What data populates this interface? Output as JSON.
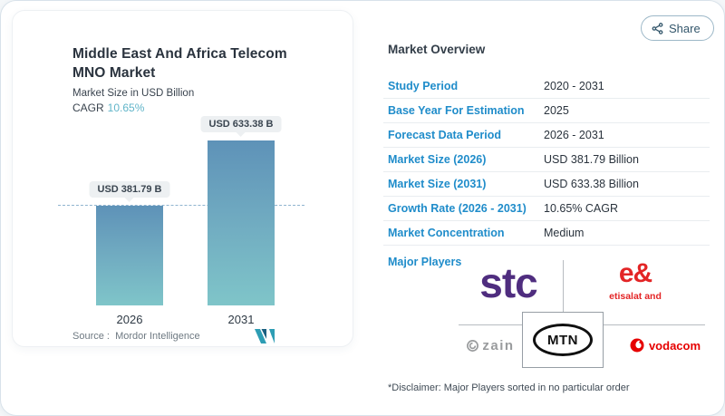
{
  "share": {
    "label": "Share"
  },
  "chart_card": {
    "title_line1": "Middle East And Africa Telecom",
    "title_line2": "MNO Market",
    "subtitle": "Market Size in USD Billion",
    "cagr_label": "CAGR",
    "cagr_value": "10.65%",
    "source_label": "Source :",
    "source_value": "Mordor Intelligence"
  },
  "chart_data": {
    "type": "bar",
    "categories": [
      "2026",
      "2031"
    ],
    "values": [
      381.79,
      633.38
    ],
    "value_labels": [
      "USD 381.79 B",
      "USD 633.38 B"
    ],
    "title": "Middle East And Africa Telecom MNO Market",
    "ylabel": "Market Size in USD Billion",
    "unit": "USD Billion",
    "cagr": "10.65%",
    "reference_line": 381.79,
    "grid": false,
    "bar_gradient_top": "#5e92b8",
    "bar_gradient_bottom": "#7fc5c9"
  },
  "overview": {
    "heading": "Market Overview",
    "rows": [
      {
        "label": "Study Period",
        "value": "2020 - 2031"
      },
      {
        "label": "Base Year For Estimation",
        "value": "2025"
      },
      {
        "label": "Forecast Data Period",
        "value": "2026 - 2031"
      },
      {
        "label": "Market Size (2026)",
        "value": "USD 381.79 Billion"
      },
      {
        "label": "Market Size (2031)",
        "value": "USD 633.38 Billion"
      },
      {
        "label": "Growth Rate (2026 - 2031)",
        "value": "10.65% CAGR"
      },
      {
        "label": "Market Concentration",
        "value": "Medium"
      }
    ],
    "major_players_label": "Major Players",
    "players": {
      "stc": "stc",
      "eand_mark": "e&",
      "eand_sub": "etisalat and",
      "zain": "zain",
      "mtn": "MTN",
      "vodacom": "vodacom"
    },
    "disclaimer": "*Disclaimer: Major Players sorted in no particular order"
  },
  "colors": {
    "label_blue": "#1f8cca",
    "cagr_teal": "#61b5c9",
    "stc_purple": "#4f2d7f",
    "eand_red": "#e32526",
    "vodacom_red": "#e60000",
    "zain_gray": "#9a9c9e",
    "bar_top": "#5e92b8",
    "bar_bottom": "#7fc5c9"
  }
}
